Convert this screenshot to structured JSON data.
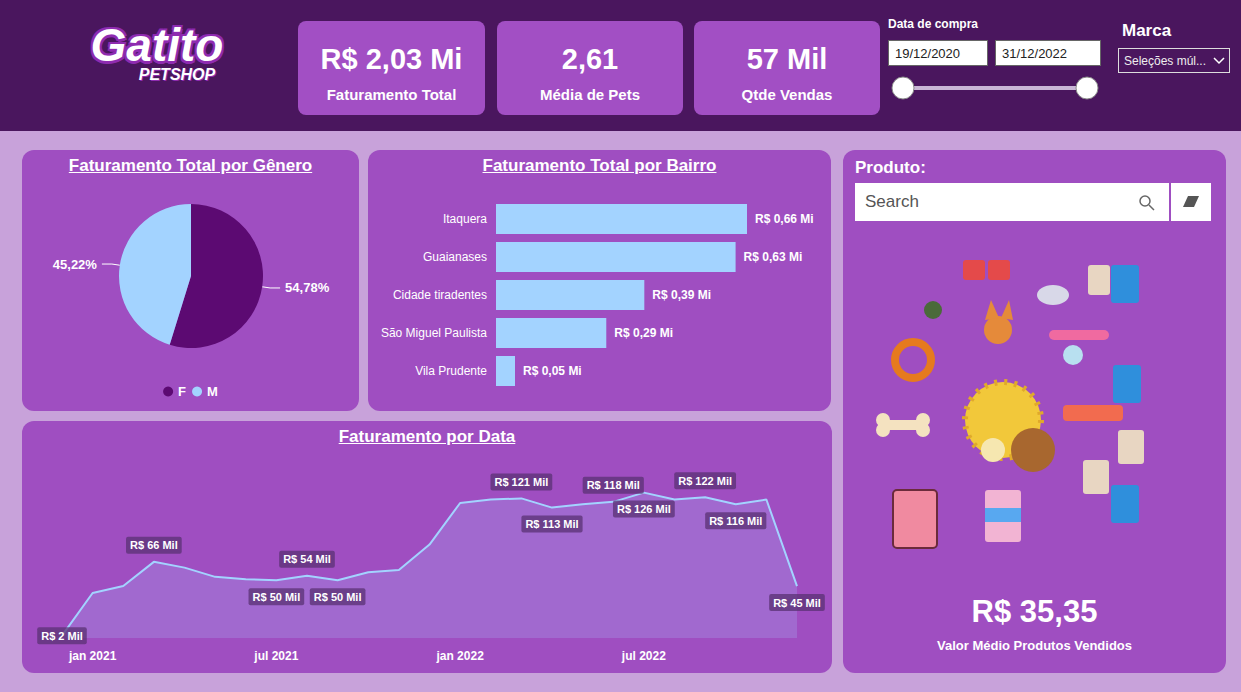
{
  "header": {
    "logo": {
      "title": "Gatito",
      "subtitle": "PETSHOP"
    },
    "kpis": [
      {
        "value": "R$ 2,03 Mi",
        "label": "Faturamento Total"
      },
      {
        "value": "2,61",
        "label": "Média de Pets"
      },
      {
        "value": "57 Mil",
        "label": "Qtde Vendas"
      }
    ],
    "filters": {
      "date": {
        "label": "Data de compra",
        "start": "19/12/2020",
        "end": "31/12/2022"
      },
      "brand": {
        "label": "Marca",
        "selection": "Seleções múl..."
      }
    }
  },
  "chart_data": [
    {
      "type": "pie",
      "title": "Faturamento Total por Gênero",
      "categories": [
        "F",
        "M"
      ],
      "values": [
        54.78,
        45.22
      ],
      "value_labels": [
        "54,78%",
        "45,22%"
      ],
      "colors": [
        "#5c0a72",
        "#a3d3ff"
      ],
      "legend": "bottom",
      "data_labels": true
    },
    {
      "type": "bar",
      "title": "Faturamento Total por Bairro",
      "orientation": "horizontal",
      "categories": [
        "Itaquera",
        "Guaianases",
        "Cidade tiradentes",
        "São Miguel Paulista",
        "Vila Prudente"
      ],
      "values": [
        0.66,
        0.63,
        0.39,
        0.29,
        0.05
      ],
      "value_labels": [
        "R$ 0,66 Mi",
        "R$ 0,63 Mi",
        "R$ 0,39 Mi",
        "R$ 0,29 Mi",
        "R$ 0,05 Mi"
      ],
      "color": "#a3d3ff",
      "xlim": [
        0,
        0.66
      ],
      "tick_labels": "y",
      "data_labels": true,
      "grid": false
    },
    {
      "type": "area",
      "title": "Faturamento por Data",
      "categories": [
        null,
        "jan 2021",
        null,
        null,
        null,
        null,
        null,
        "jul 2021",
        null,
        null,
        null,
        null,
        null,
        "jan 2022",
        null,
        null,
        null,
        null,
        null,
        "jul 2022",
        null,
        null,
        null,
        null,
        null
      ],
      "values": [
        2,
        39,
        45,
        66,
        61,
        53,
        51,
        50,
        54,
        50,
        57,
        59,
        81,
        117,
        120,
        121,
        113,
        116,
        118,
        126,
        120,
        122,
        116,
        120,
        45
      ],
      "value_labels": [
        "R$ 2 Mil",
        null,
        null,
        "R$ 66 Mil",
        null,
        null,
        null,
        "R$ 50 Mil",
        "R$ 54 Mil",
        "R$ 50 Mil",
        null,
        null,
        null,
        null,
        null,
        "R$ 121 Mil",
        "R$ 113 Mil",
        null,
        "R$ 118 Mil",
        "R$ 126 Mil",
        null,
        "R$ 122 Mil",
        "R$ 116 Mil",
        null,
        "R$ 45 Mil"
      ],
      "color": "#a3d3ff",
      "ylim": [
        0,
        130
      ],
      "tick_labels": "x",
      "data_labels": true,
      "grid": false
    }
  ],
  "product_panel": {
    "label": "Produto:",
    "search_placeholder": "Search",
    "value": "R$ 35,35",
    "value_label": "Valor Médio Produtos Vendidos"
  }
}
